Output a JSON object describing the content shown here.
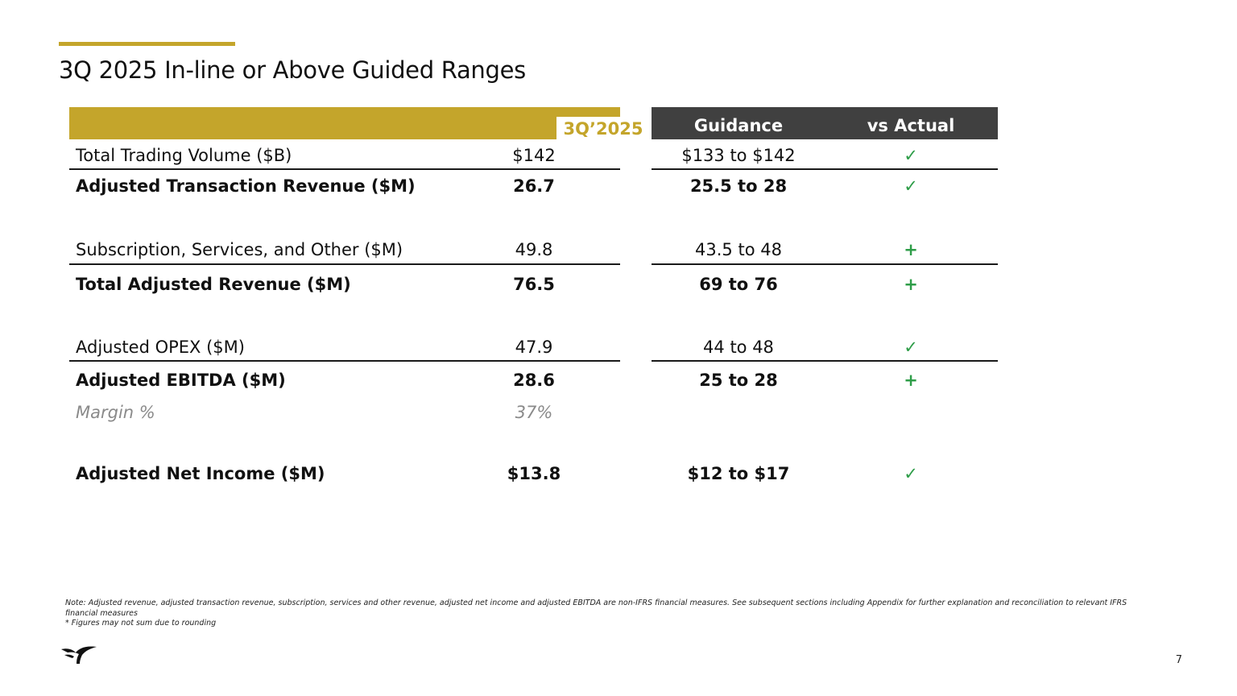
{
  "title": "3Q 2025 In-line or Above Guided Ranges",
  "colors": {
    "gold": "#C4A52B",
    "dark_header": "#404040",
    "check_green": "#2E9D48"
  },
  "table": {
    "headers": {
      "value": "3Q’2025",
      "guidance": "Guidance",
      "vs_actual": "vs Actual"
    },
    "rows": [
      {
        "label": "Total Trading Volume ($B)",
        "value": "$142",
        "guidance": "$133 to $142",
        "vs": "✓"
      },
      {
        "label": "Adjusted Transaction Revenue ($M)",
        "value": "26.7",
        "guidance": "25.5 to 28",
        "vs": "✓"
      },
      {
        "label": "Subscription, Services, and Other ($M)",
        "value": "49.8",
        "guidance": "43.5 to 48",
        "vs": "+"
      },
      {
        "label": "Total Adjusted Revenue ($M)",
        "value": "76.5",
        "guidance": "69 to 76",
        "vs": "+"
      },
      {
        "label": "Adjusted OPEX ($M)",
        "value": "47.9",
        "guidance": "44 to 48",
        "vs": "✓"
      },
      {
        "label": "Adjusted EBITDA ($M)",
        "value": "28.6",
        "guidance": "25 to 28",
        "vs": "+"
      },
      {
        "label": "Margin %",
        "value": "37%",
        "guidance": "",
        "vs": ""
      },
      {
        "label": "Adjusted Net Income ($M)",
        "value": "$13.8",
        "guidance": "$12 to $17",
        "vs": "✓"
      }
    ]
  },
  "footnote": {
    "note": "Note: Adjusted revenue, adjusted transaction revenue, subscription, services and other revenue, adjusted net income and adjusted EBITDA are non-IFRS financial measures. See subsequent sections including Appendix for further explanation and reconciliation to relevant IFRS financial measures",
    "rounding": "* Figures may not sum due to rounding"
  },
  "logo_icon": "bird-logo-icon",
  "page_number": "7"
}
